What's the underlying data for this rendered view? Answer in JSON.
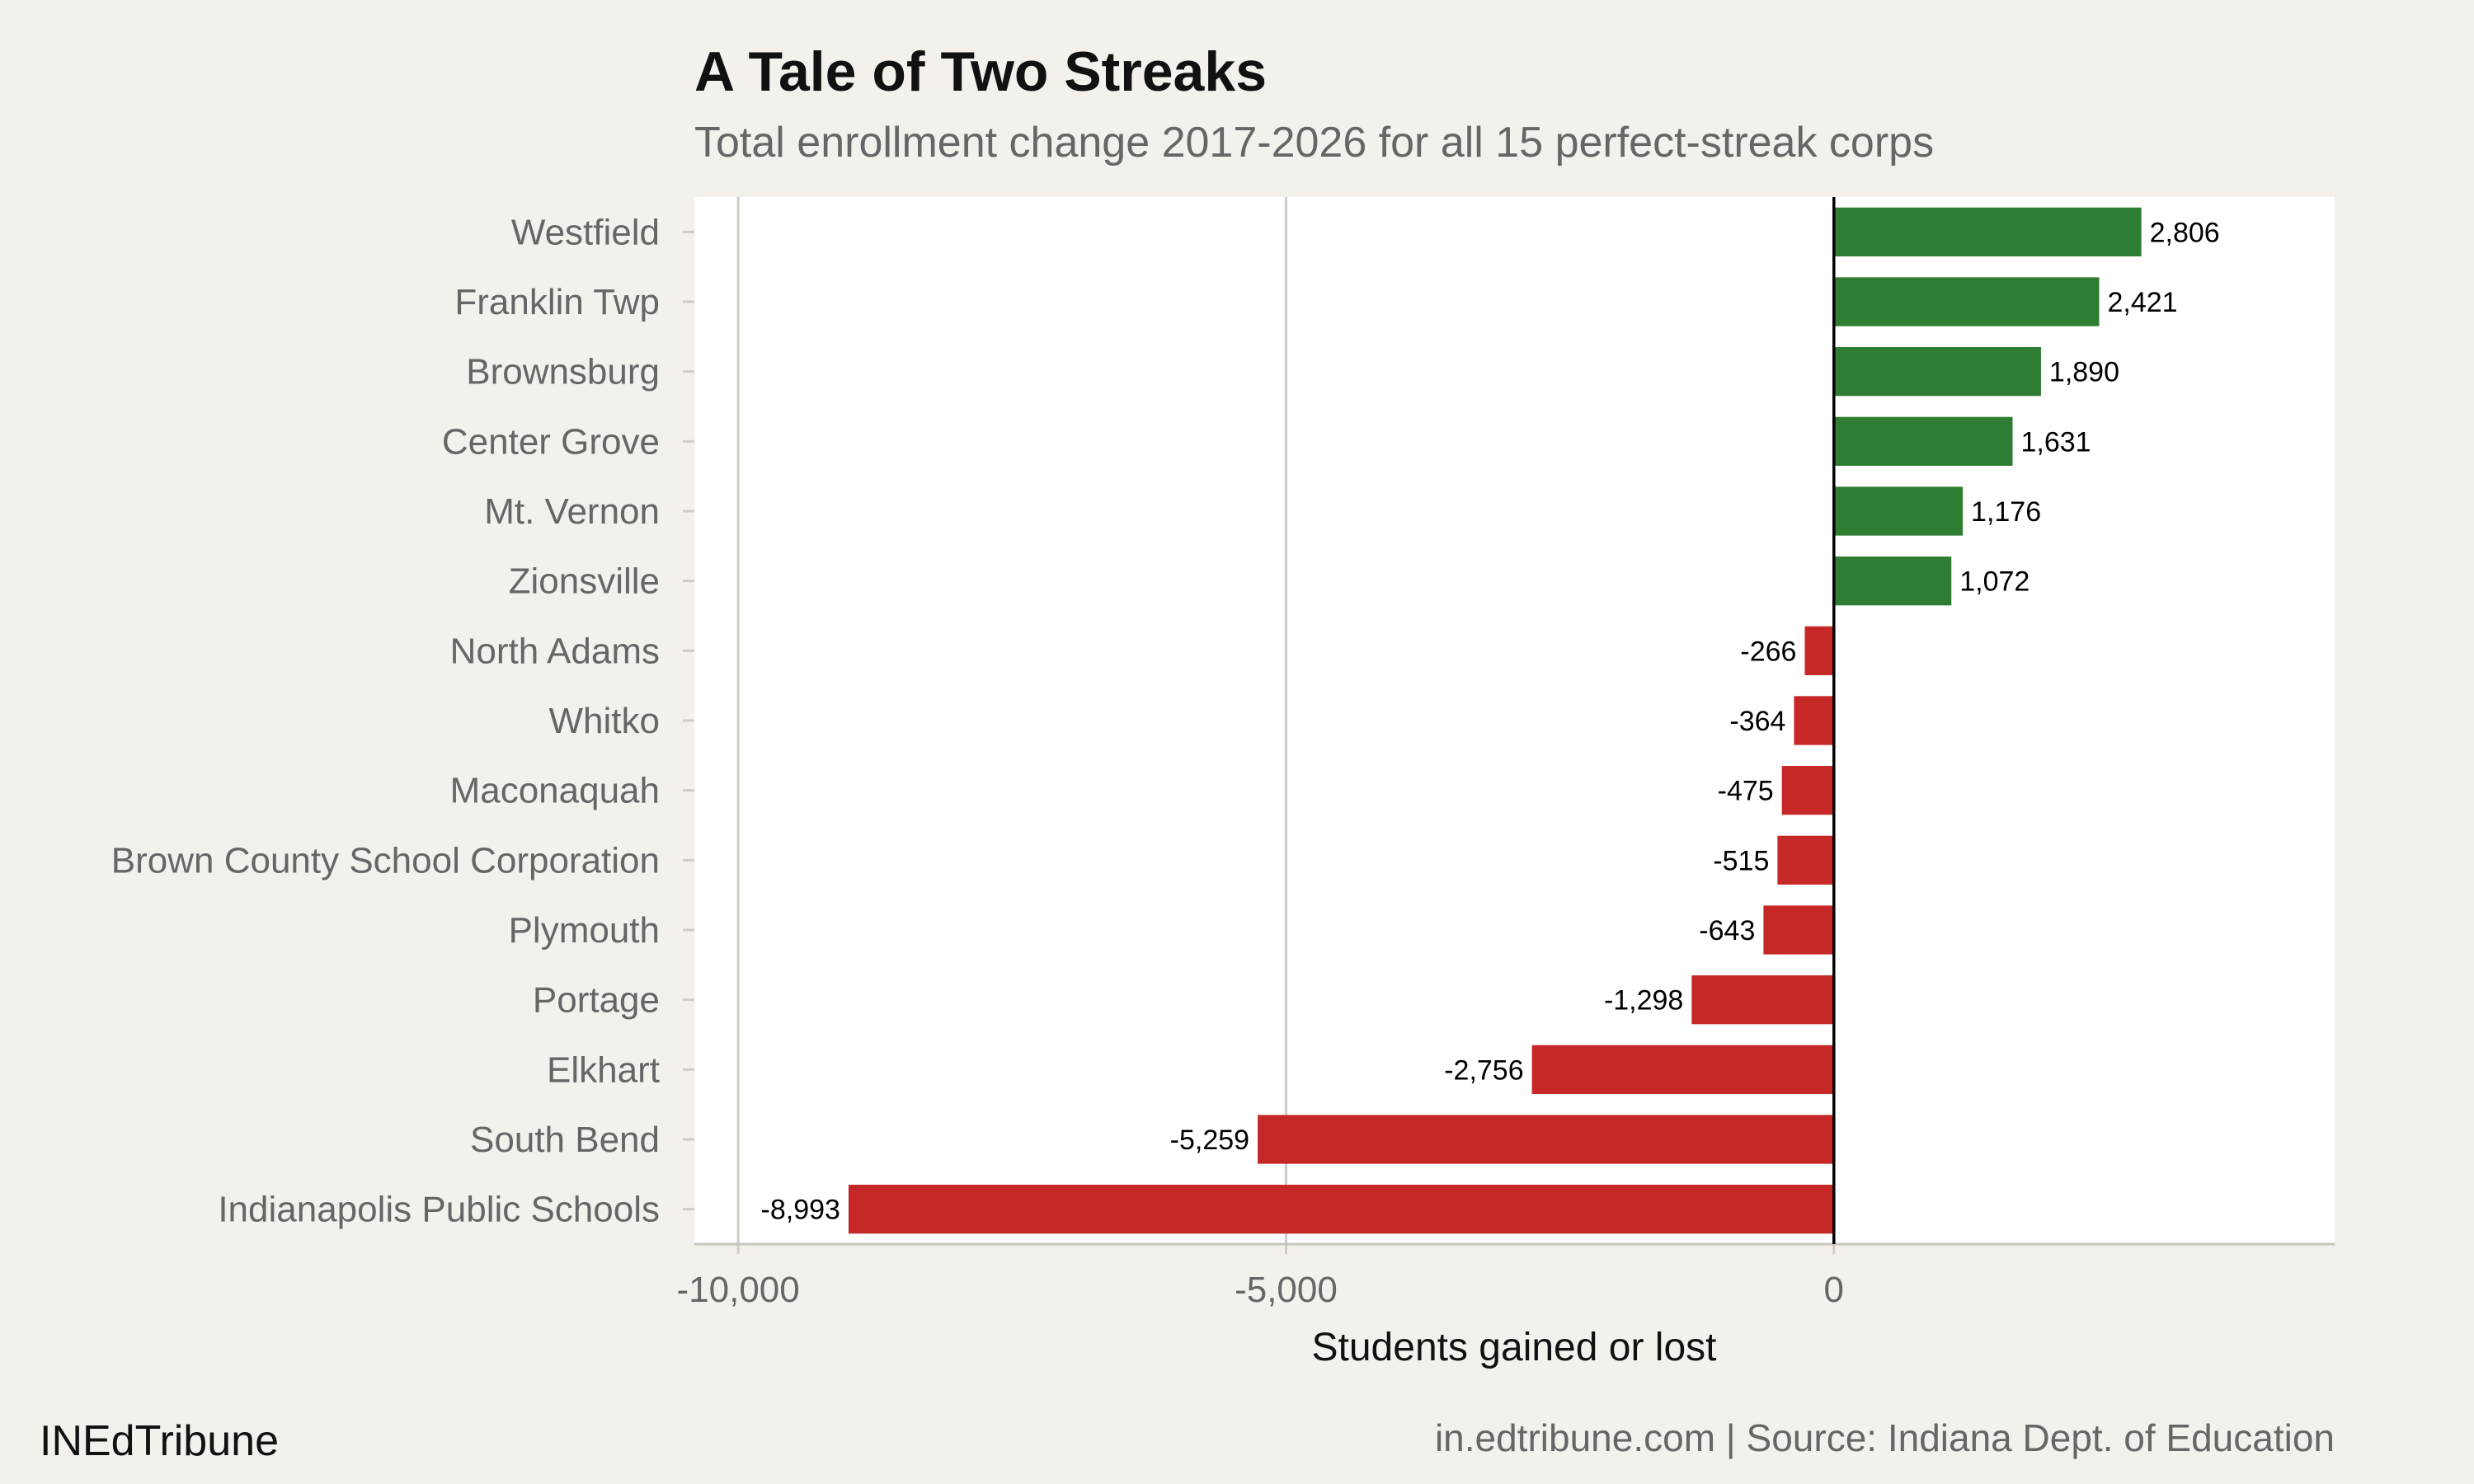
{
  "chart_data": {
    "type": "bar",
    "orientation": "horizontal",
    "title": "A Tale of Two Streaks",
    "subtitle": "Total enrollment change 2017-2026 for all 15 perfect-streak corps",
    "xlabel": "Students gained or lost",
    "ylabel": "",
    "xlim": [
      -10400,
      4570
    ],
    "xticks": [
      -10000,
      -5000,
      0
    ],
    "xtick_labels": [
      "-10,000",
      "-5,000",
      "0"
    ],
    "grid": "vertical major gridlines",
    "categories": [
      "Westfield",
      "Franklin Twp",
      "Brownsburg",
      "Center Grove",
      "Mt. Vernon",
      "Zionsville",
      "North Adams",
      "Whitko",
      "Maconaquah",
      "Brown County School Corporation",
      "Plymouth",
      "Portage",
      "Elkhart",
      "South Bend",
      "Indianapolis Public Schools"
    ],
    "values": [
      2806,
      2421,
      1890,
      1631,
      1176,
      1072,
      -266,
      -364,
      -475,
      -515,
      -643,
      -1298,
      -2756,
      -5259,
      -8993
    ],
    "value_labels": [
      "2,806",
      "2,421",
      "1,890",
      "1,631",
      "1,176",
      "1,072",
      "-266",
      "-364",
      "-475",
      "-515",
      "-643",
      "-1,298",
      "-2,756",
      "-5,259",
      "-8,993"
    ],
    "colors": {
      "positive": "#2e7d32",
      "negative": "#c62828",
      "background": "#f4f1ec",
      "panel": "#ffffff",
      "grid": "#d0ccc4"
    }
  },
  "footer": {
    "brand": "INEdTribune",
    "source": "in.edtribune.com | Source: Indiana Dept. of Education"
  }
}
